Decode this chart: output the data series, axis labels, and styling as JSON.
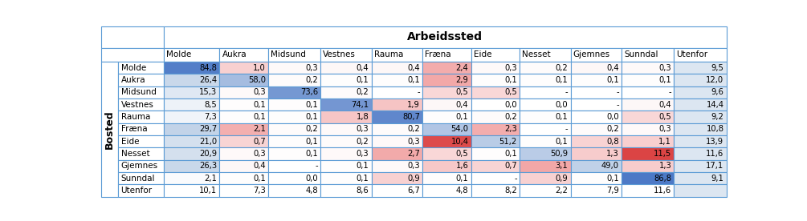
{
  "title": "Arbeidssted",
  "row_label": "Bosted",
  "col_headers": [
    "Molde",
    "Aukra",
    "Midsund",
    "Vestnes",
    "Rauma",
    "Fræna",
    "Eide",
    "Nesset",
    "Gjemnes",
    "Sunndal",
    "Utenfor"
  ],
  "row_headers": [
    "Molde",
    "Aukra",
    "Midsund",
    "Vestnes",
    "Rauma",
    "Fræna",
    "Eide",
    "Nesset",
    "Gjemnes",
    "Sunndal",
    "Utenfor"
  ],
  "data": [
    [
      "84,8",
      "1,0",
      "0,3",
      "0,4",
      "0,4",
      "2,4",
      "0,3",
      "0,2",
      "0,4",
      "0,3",
      "9,5"
    ],
    [
      "26,4",
      "58,0",
      "0,2",
      "0,1",
      "0,1",
      "2,9",
      "0,1",
      "0,1",
      "0,1",
      "0,1",
      "12,0"
    ],
    [
      "15,3",
      "0,3",
      "73,6",
      "0,2",
      "-",
      "0,5",
      "0,5",
      "-",
      "-",
      "-",
      "9,6"
    ],
    [
      "8,5",
      "0,1",
      "0,1",
      "74,1",
      "1,9",
      "0,4",
      "0,0",
      "0,0",
      "-",
      "0,4",
      "14,4"
    ],
    [
      "7,3",
      "0,1",
      "0,1",
      "1,8",
      "80,7",
      "0,1",
      "0,2",
      "0,1",
      "0,0",
      "0,5",
      "9,2"
    ],
    [
      "29,7",
      "2,1",
      "0,2",
      "0,3",
      "0,2",
      "54,0",
      "2,3",
      "-",
      "0,2",
      "0,3",
      "10,8"
    ],
    [
      "21,0",
      "0,7",
      "0,1",
      "0,2",
      "0,3",
      "10,4",
      "51,2",
      "0,1",
      "0,8",
      "1,1",
      "13,9"
    ],
    [
      "20,9",
      "0,3",
      "0,1",
      "0,3",
      "2,7",
      "0,5",
      "0,1",
      "50,9",
      "1,3",
      "11,5",
      "11,6"
    ],
    [
      "26,3",
      "0,4",
      "-",
      "0,1",
      "0,3",
      "1,6",
      "0,7",
      "3,1",
      "49,0",
      "1,3",
      "17,1"
    ],
    [
      "2,1",
      "0,1",
      "0,0",
      "0,1",
      "0,9",
      "0,1",
      "-",
      "0,9",
      "0,1",
      "86,8",
      "9,1"
    ],
    [
      "10,1",
      "7,3",
      "4,8",
      "8,6",
      "6,7",
      "4,8",
      "8,2",
      "2,2",
      "7,9",
      "11,6",
      ""
    ]
  ],
  "numeric_data": [
    [
      84.8,
      1.0,
      0.3,
      0.4,
      0.4,
      2.4,
      0.3,
      0.2,
      0.4,
      0.3,
      9.5
    ],
    [
      26.4,
      58.0,
      0.2,
      0.1,
      0.1,
      2.9,
      0.1,
      0.1,
      0.1,
      0.1,
      12.0
    ],
    [
      15.3,
      0.3,
      73.6,
      0.2,
      -1,
      0.5,
      0.5,
      -1,
      -1,
      -1,
      9.6
    ],
    [
      8.5,
      0.1,
      0.1,
      74.1,
      1.9,
      0.4,
      0.0,
      0.0,
      -1,
      0.4,
      14.4
    ],
    [
      7.3,
      0.1,
      0.1,
      1.8,
      80.7,
      0.1,
      0.2,
      0.1,
      0.0,
      0.5,
      9.2
    ],
    [
      29.7,
      2.1,
      0.2,
      0.3,
      0.2,
      54.0,
      2.3,
      -1,
      0.2,
      0.3,
      10.8
    ],
    [
      21.0,
      0.7,
      0.1,
      0.2,
      0.3,
      10.4,
      51.2,
      0.1,
      0.8,
      1.1,
      13.9
    ],
    [
      20.9,
      0.3,
      0.1,
      0.3,
      2.7,
      0.5,
      0.1,
      50.9,
      1.3,
      11.5,
      11.6
    ],
    [
      26.3,
      0.4,
      -1,
      0.1,
      0.3,
      1.6,
      0.7,
      3.1,
      49.0,
      1.3,
      17.1
    ],
    [
      2.1,
      0.1,
      0.0,
      0.1,
      0.9,
      0.1,
      -1,
      0.9,
      0.1,
      86.8,
      9.1
    ],
    [
      10.1,
      7.3,
      4.8,
      8.6,
      6.7,
      4.8,
      8.2,
      2.2,
      7.9,
      11.6,
      -1
    ]
  ],
  "border_color": "#5b9bd5",
  "title_fontsize": 10,
  "header_fontsize": 7.5,
  "cell_fontsize": 7.2,
  "bosted_fontsize": 9,
  "col_0_special": [
    0,
    5,
    7,
    8
  ],
  "utenfor_col_bg": "#dce6f1",
  "molde_col_bg": "#dce6f1"
}
